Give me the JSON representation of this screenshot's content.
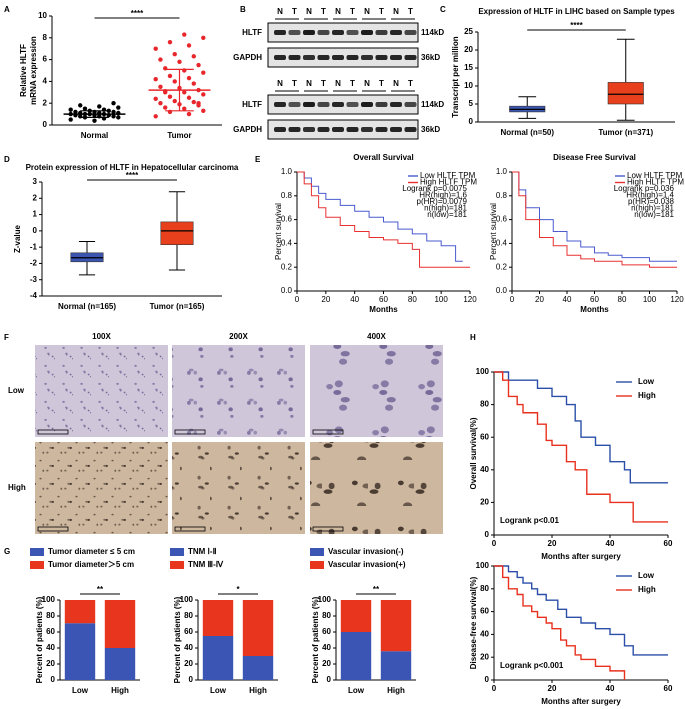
{
  "panel_labels": [
    "A",
    "B",
    "C",
    "D",
    "E",
    "F",
    "G",
    "H"
  ],
  "blots": [
    {
      "lanes": [
        "N",
        "T",
        "N",
        "T",
        "N",
        "T",
        "N",
        "T",
        "N",
        "T"
      ],
      "rows": [
        {
          "label": "HLTF",
          "size": "114kD"
        },
        {
          "label": "GAPDH",
          "size": "36kD"
        }
      ]
    },
    {
      "lanes": [
        "N",
        "T",
        "N",
        "T",
        "N",
        "T",
        "N",
        "T",
        "N",
        "T"
      ],
      "rows": [
        {
          "label": "HLTF",
          "size": "114kD"
        },
        {
          "label": "GAPDH",
          "size": "36kD"
        }
      ]
    }
  ],
  "histology": {
    "columns": [
      "100X",
      "200X",
      "400X"
    ],
    "rows": [
      "Low",
      "High"
    ]
  },
  "chart_data": [
    {
      "type": "dot",
      "ylabel": [
        "Relative HLTF",
        "mRNA expression"
      ],
      "categories": [
        "Normal",
        "Tumor"
      ],
      "colors": [
        "#000000",
        "#e8262b"
      ],
      "groups": [
        {
          "values": [
            0.5,
            0.6,
            0.7,
            0.7,
            0.8,
            0.8,
            0.8,
            0.9,
            0.9,
            0.9,
            1.0,
            1.0,
            1.0,
            1.0,
            1.1,
            1.1,
            1.1,
            1.2,
            1.2,
            1.2,
            1.3,
            1.3,
            1.4,
            1.4,
            1.5,
            1.6,
            1.7,
            1.8,
            2.0,
            0.4
          ],
          "mean": 1.0,
          "sd": 0.3
        },
        {
          "values": [
            0.8,
            1.0,
            1.2,
            1.3,
            1.5,
            1.6,
            1.8,
            1.9,
            2.0,
            2.1,
            2.2,
            2.4,
            2.5,
            2.6,
            2.8,
            3.0,
            3.1,
            3.2,
            3.4,
            3.5,
            3.8,
            4.0,
            4.2,
            4.3,
            4.5,
            4.8,
            5.0,
            5.2,
            5.5,
            5.8,
            6.0,
            6.3,
            6.5,
            7.0,
            7.3,
            7.6,
            8.0,
            8.3,
            3.0,
            2.0
          ],
          "mean": 3.2,
          "sd": 1.9
        }
      ],
      "ylim": [
        0,
        10
      ],
      "yticks": [
        0,
        2,
        4,
        6,
        8,
        10
      ],
      "significance": "****"
    },
    {
      "type": "box",
      "title": "Expression of HLTF in LIHC based on Sample types",
      "ylabel": "Transcript per million",
      "categories": [
        "Normal (n=50)",
        "Tumor (n=371)"
      ],
      "colors": [
        "#3b55b0",
        "#e8401c"
      ],
      "boxes": [
        {
          "min": 1,
          "q1": 2.8,
          "median": 3.5,
          "q3": 4.4,
          "max": 7
        },
        {
          "min": 0.5,
          "q1": 5,
          "median": 7.7,
          "q3": 11,
          "max": 23
        }
      ],
      "ylim": [
        0,
        25
      ],
      "yticks": [
        0,
        5,
        10,
        15,
        20,
        25
      ],
      "significance": "****"
    },
    {
      "type": "box",
      "title": "Protein expression of HLTF in Hepatocellular carcinoma",
      "ylabel": "Z-value",
      "categories": [
        "Normal (n=165)",
        "Tumor (n=165)"
      ],
      "colors": [
        "#3b55b0",
        "#e8401c"
      ],
      "boxes": [
        {
          "min": -2.7,
          "q1": -1.9,
          "median": -1.65,
          "q3": -1.35,
          "max": -0.65
        },
        {
          "min": -2.4,
          "q1": -0.85,
          "median": 0,
          "q3": 0.55,
          "max": 2.4
        }
      ],
      "ylim": [
        -4,
        3
      ],
      "yticks": [
        -4,
        -3,
        -2,
        -1,
        0,
        1,
        2,
        3
      ],
      "significance": "****"
    },
    {
      "type": "step",
      "title": "Overall Survival",
      "xlabel": "Months",
      "ylabel": "Percent survival",
      "xlim": [
        0,
        120
      ],
      "xticks": [
        0,
        20,
        40,
        60,
        80,
        100,
        120
      ],
      "ylim": [
        0,
        1
      ],
      "yticks": [
        {
          "value": 0,
          "label": "0.0"
        },
        0.2,
        0.4,
        0.6,
        0.8,
        {
          "value": 1,
          "label": "1.0"
        }
      ],
      "legend": "upper right",
      "annotation_loc": "upper right",
      "series": [
        {
          "name": "Low HLTF TPM",
          "color": "#4a5bd0",
          "x": [
            0,
            5,
            10,
            15,
            20,
            30,
            40,
            50,
            60,
            70,
            80,
            90,
            100,
            110,
            115
          ],
          "values": [
            1,
            0.95,
            0.88,
            0.82,
            0.77,
            0.72,
            0.67,
            0.62,
            0.58,
            0.52,
            0.48,
            0.42,
            0.38,
            0.25,
            0.25
          ]
        },
        {
          "name": "High HLTF TPM",
          "color": "#e83030",
          "x": [
            0,
            5,
            10,
            15,
            20,
            30,
            40,
            50,
            60,
            70,
            80,
            85,
            100,
            120
          ],
          "values": [
            1,
            0.9,
            0.8,
            0.7,
            0.62,
            0.55,
            0.5,
            0.45,
            0.43,
            0.4,
            0.35,
            0.2,
            0.2,
            0.2
          ]
        }
      ],
      "annotations": [
        "Logrank p=0.0075",
        "HR(high)=1.6",
        "p(HR)=0.0079",
        "n(high)=181",
        "n(low)=181"
      ]
    },
    {
      "type": "step",
      "title": "Disease Free Survival",
      "xlabel": "Months",
      "ylabel": "Percent survival",
      "xlim": [
        0,
        120
      ],
      "xticks": [
        0,
        20,
        40,
        60,
        80,
        100,
        120
      ],
      "ylim": [
        0,
        1
      ],
      "yticks": [
        {
          "value": 0,
          "label": "0.0"
        },
        0.2,
        0.4,
        0.6,
        0.8,
        {
          "value": 1,
          "label": "1.0"
        }
      ],
      "legend": "upper right",
      "annotation_loc": "upper right",
      "series": [
        {
          "name": "Low HLTF TPM",
          "color": "#4a5bd0",
          "x": [
            0,
            5,
            10,
            20,
            30,
            40,
            50,
            60,
            70,
            80,
            100,
            120
          ],
          "values": [
            1,
            0.85,
            0.7,
            0.6,
            0.5,
            0.42,
            0.37,
            0.32,
            0.3,
            0.28,
            0.25,
            0.25
          ]
        },
        {
          "name": "High HLTF TPM",
          "color": "#e83030",
          "x": [
            0,
            5,
            10,
            20,
            30,
            40,
            50,
            60,
            80,
            100,
            120
          ],
          "values": [
            1,
            0.8,
            0.6,
            0.45,
            0.38,
            0.3,
            0.27,
            0.25,
            0.22,
            0.2,
            0.2
          ]
        }
      ],
      "annotations": [
        "Logrank p=0.036",
        "HR(high)=1.4",
        "p(HR)=0.038",
        "n(high)=181",
        "n(low)=181"
      ]
    },
    {
      "type": "step",
      "ylabel": "Overall survival(%)",
      "xlabel": "Months after surgery",
      "xlim": [
        0,
        60
      ],
      "xticks": [
        0,
        20,
        40,
        60
      ],
      "ylim": [
        0,
        100
      ],
      "yticks": [
        0,
        20,
        40,
        60,
        80,
        100
      ],
      "legend": "upper right",
      "annotation_loc": "lower left",
      "series": [
        {
          "name": "Low",
          "color": "#2b4fa8",
          "x": [
            0,
            5,
            10,
            15,
            20,
            25,
            28,
            30,
            35,
            40,
            45,
            47,
            60
          ],
          "values": [
            100,
            95,
            95,
            90,
            85,
            80,
            70,
            60,
            55,
            45,
            40,
            32,
            32
          ]
        },
        {
          "name": "High",
          "color": "#e8301e",
          "x": [
            0,
            3,
            5,
            8,
            10,
            15,
            18,
            20,
            25,
            28,
            32,
            38,
            40,
            48,
            60
          ],
          "values": [
            100,
            95,
            85,
            80,
            75,
            68,
            58,
            55,
            45,
            40,
            25,
            25,
            20,
            8,
            8
          ]
        }
      ],
      "annotations": [
        "Logrank p<0.01"
      ]
    },
    {
      "type": "step",
      "ylabel": "Disease-free survival(%)",
      "xlabel": "Months after surgery",
      "xlim": [
        0,
        60
      ],
      "xticks": [
        0,
        20,
        40,
        60
      ],
      "ylim": [
        0,
        100
      ],
      "yticks": [
        0,
        20,
        40,
        60,
        80,
        100
      ],
      "legend": "upper right",
      "annotation_loc": "lower left",
      "series": [
        {
          "name": "Low",
          "color": "#2b4fa8",
          "x": [
            0,
            5,
            8,
            10,
            13,
            15,
            18,
            22,
            25,
            30,
            35,
            40,
            45,
            48,
            60
          ],
          "values": [
            100,
            95,
            90,
            85,
            80,
            75,
            70,
            62,
            55,
            50,
            45,
            40,
            30,
            22,
            22
          ]
        },
        {
          "name": "High",
          "color": "#e8301e",
          "x": [
            0,
            3,
            5,
            8,
            10,
            13,
            15,
            18,
            20,
            23,
            25,
            28,
            30,
            35,
            40,
            45
          ],
          "values": [
            100,
            90,
            80,
            75,
            65,
            60,
            55,
            50,
            45,
            35,
            30,
            22,
            18,
            12,
            8,
            0
          ]
        }
      ],
      "annotations": [
        "Logrank p<0.001"
      ]
    },
    {
      "type": "stacked_bar",
      "ylabel": "Percent of patients (%)",
      "categories": [
        "Low",
        "High"
      ],
      "ylim": [
        0,
        100
      ],
      "yticks": [
        0,
        20,
        40,
        60,
        80,
        100
      ],
      "series": [
        {
          "name": "Tumor diameter ≤ 5 cm",
          "color": "#3a55b4",
          "values": [
            71,
            40
          ]
        },
        {
          "name": "Tumor diameter＞5 cm",
          "color": "#e8351e",
          "values": [
            29,
            60
          ]
        }
      ],
      "significance": "**"
    },
    {
      "type": "stacked_bar",
      "ylabel": "Percent of patients (%)",
      "categories": [
        "Low",
        "High"
      ],
      "ylim": [
        0,
        100
      ],
      "yticks": [
        0,
        20,
        40,
        60,
        80,
        100
      ],
      "series": [
        {
          "name": "TNM Ⅰ-Ⅱ",
          "color": "#3a55b4",
          "values": [
            55,
            30
          ]
        },
        {
          "name": "TNM Ⅲ-Ⅳ",
          "color": "#e8351e",
          "values": [
            45,
            70
          ]
        }
      ],
      "significance": "*"
    },
    {
      "type": "stacked_bar",
      "ylabel": "Percent of patients (%)",
      "categories": [
        "Low",
        "High"
      ],
      "ylim": [
        0,
        100
      ],
      "yticks": [
        0,
        20,
        40,
        60,
        80,
        100
      ],
      "series": [
        {
          "name": "Vascular invasion(-)",
          "color": "#3a55b4",
          "values": [
            60,
            36
          ]
        },
        {
          "name": "Vascular invasion(+)",
          "color": "#e8351e",
          "values": [
            40,
            64
          ]
        }
      ],
      "significance": "**"
    }
  ]
}
